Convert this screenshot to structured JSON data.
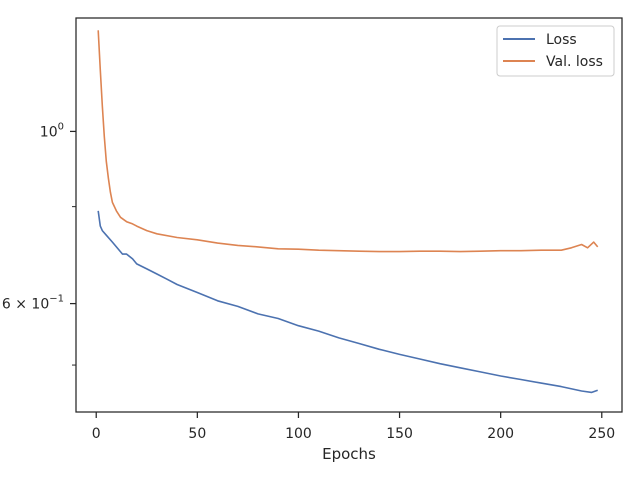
{
  "chart_data": {
    "type": "line",
    "xlabel": "Epochs",
    "ylabel": "",
    "yscale": "log",
    "xlim": [
      -10,
      260
    ],
    "ylim": [
      0.435,
      1.4
    ],
    "grid": false,
    "legend_position": "top-right",
    "x_ticks": [
      0,
      50,
      100,
      150,
      200,
      250
    ],
    "x_tick_labels": [
      "0",
      "50",
      "100",
      "150",
      "200",
      "250"
    ],
    "y_ticks": [
      {
        "value": 1.0,
        "base": "10",
        "exp": "0"
      },
      {
        "value": 0.6,
        "base": "6 × 10",
        "exp": "−1"
      }
    ],
    "y_minor_ticks": [
      0.8,
      0.5
    ],
    "series": [
      {
        "name": "Loss",
        "color": "#4c72b0",
        "x": [
          1,
          2,
          3,
          5,
          8,
          10,
          13,
          15,
          18,
          20,
          25,
          30,
          35,
          40,
          50,
          60,
          70,
          80,
          90,
          100,
          110,
          120,
          130,
          140,
          150,
          160,
          170,
          180,
          190,
          200,
          210,
          220,
          230,
          240,
          245,
          248
        ],
        "y": [
          0.79,
          0.755,
          0.745,
          0.735,
          0.72,
          0.71,
          0.695,
          0.695,
          0.685,
          0.675,
          0.665,
          0.655,
          0.645,
          0.635,
          0.62,
          0.605,
          0.595,
          0.582,
          0.574,
          0.562,
          0.553,
          0.542,
          0.533,
          0.524,
          0.516,
          0.509,
          0.502,
          0.496,
          0.49,
          0.484,
          0.479,
          0.474,
          0.469,
          0.463,
          0.461,
          0.464
        ]
      },
      {
        "name": "Val. loss",
        "color": "#dd8452",
        "x": [
          1,
          2,
          3,
          4,
          5,
          6,
          7,
          8,
          10,
          12,
          15,
          18,
          20,
          25,
          30,
          40,
          50,
          60,
          70,
          80,
          90,
          100,
          110,
          120,
          130,
          140,
          150,
          160,
          170,
          180,
          190,
          200,
          210,
          220,
          230,
          235,
          240,
          243,
          246,
          248
        ],
        "y": [
          1.35,
          1.2,
          1.08,
          0.985,
          0.915,
          0.87,
          0.835,
          0.81,
          0.79,
          0.775,
          0.765,
          0.76,
          0.755,
          0.745,
          0.738,
          0.73,
          0.725,
          0.718,
          0.713,
          0.71,
          0.706,
          0.705,
          0.703,
          0.702,
          0.701,
          0.7,
          0.7,
          0.701,
          0.701,
          0.7,
          0.701,
          0.702,
          0.702,
          0.703,
          0.703,
          0.708,
          0.715,
          0.708,
          0.72,
          0.71
        ]
      }
    ]
  }
}
